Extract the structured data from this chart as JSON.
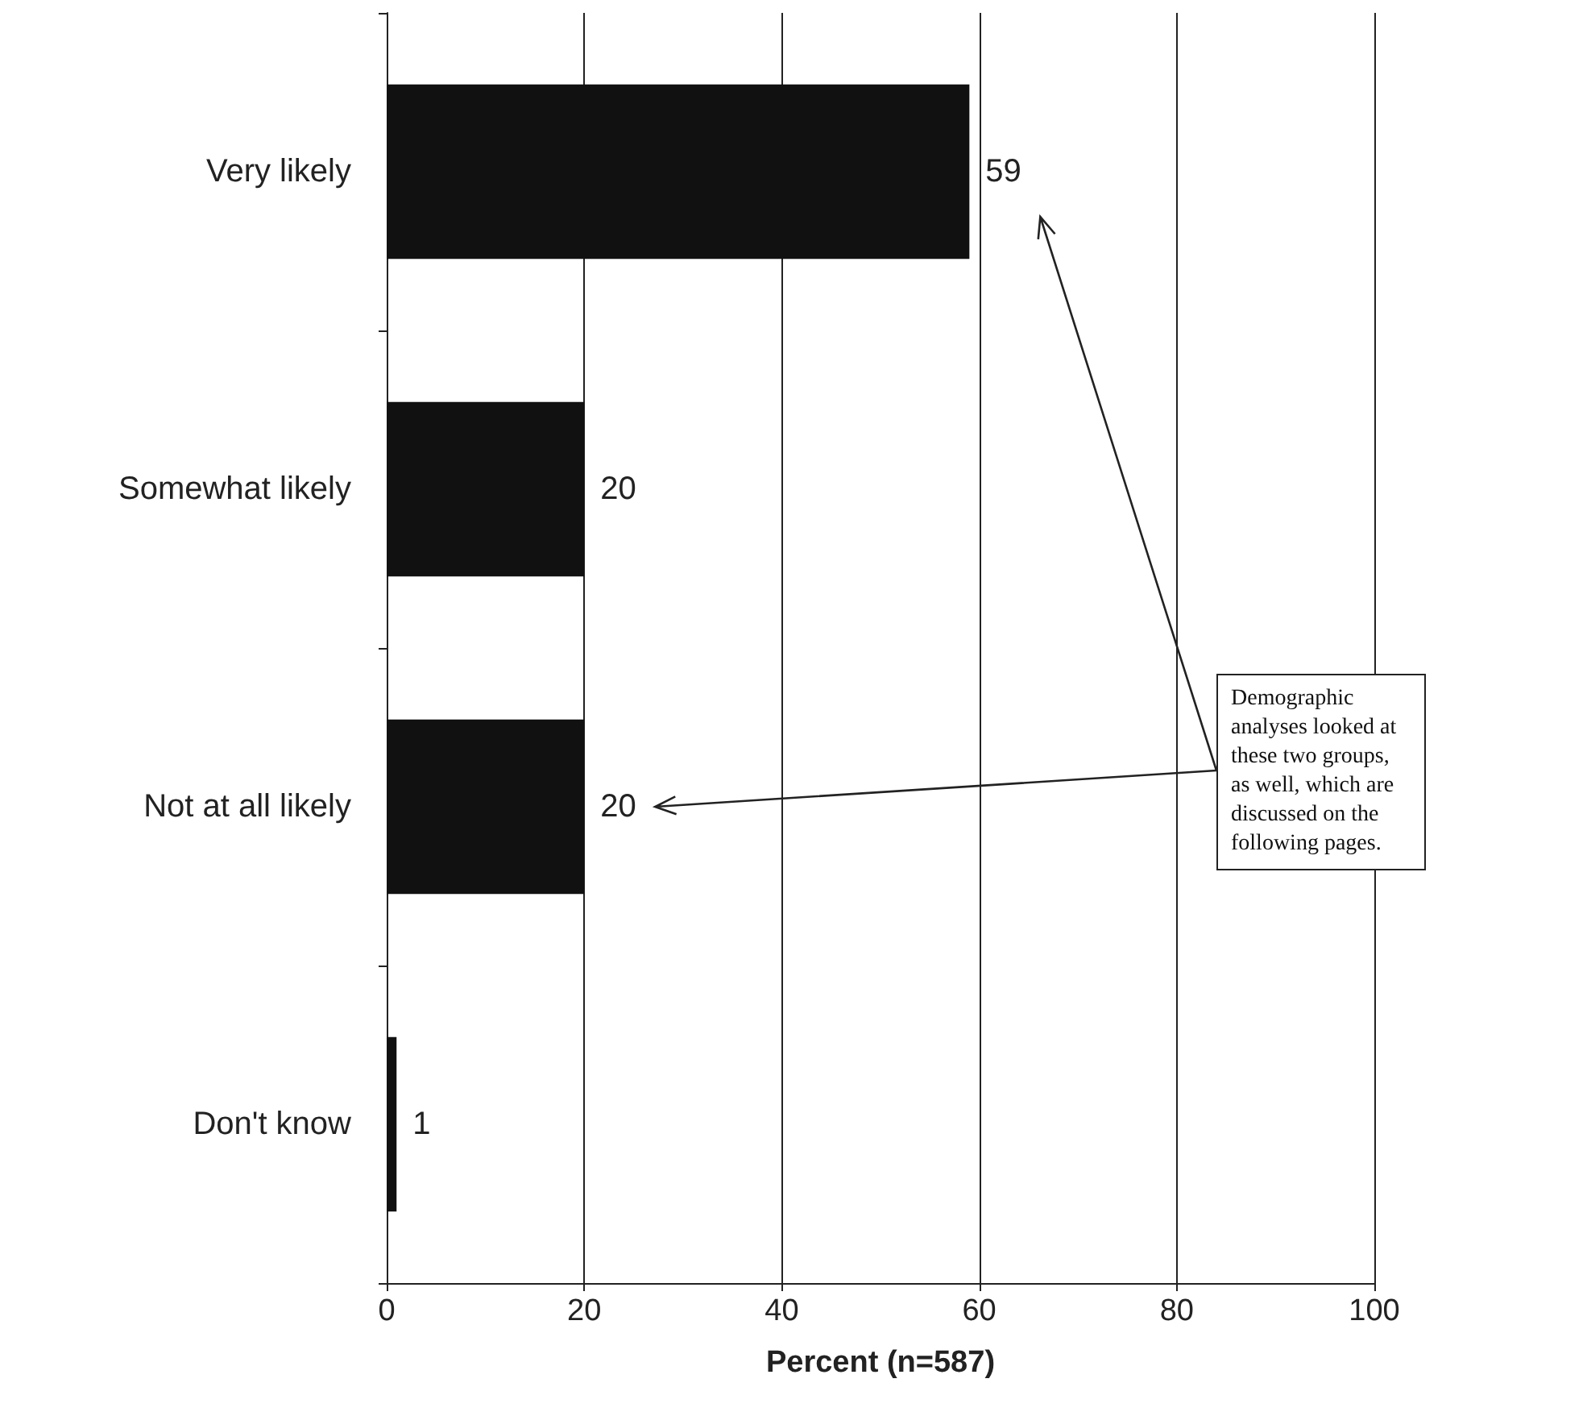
{
  "chart_data": {
    "type": "bar",
    "orientation": "horizontal",
    "categories": [
      "Very likely",
      "Somewhat likely",
      "Not at all likely",
      "Don't know"
    ],
    "values": [
      59,
      20,
      20,
      1
    ],
    "color": "#111111",
    "xlabel": "Percent (n=587)",
    "xlim": [
      0,
      100
    ],
    "xticks": [
      0,
      20,
      40,
      60,
      80,
      100
    ],
    "grid": "x",
    "data_labels": true,
    "annotations": [
      "Demographic analyses looked at these two groups, as well, which are discussed on the following pages."
    ]
  }
}
